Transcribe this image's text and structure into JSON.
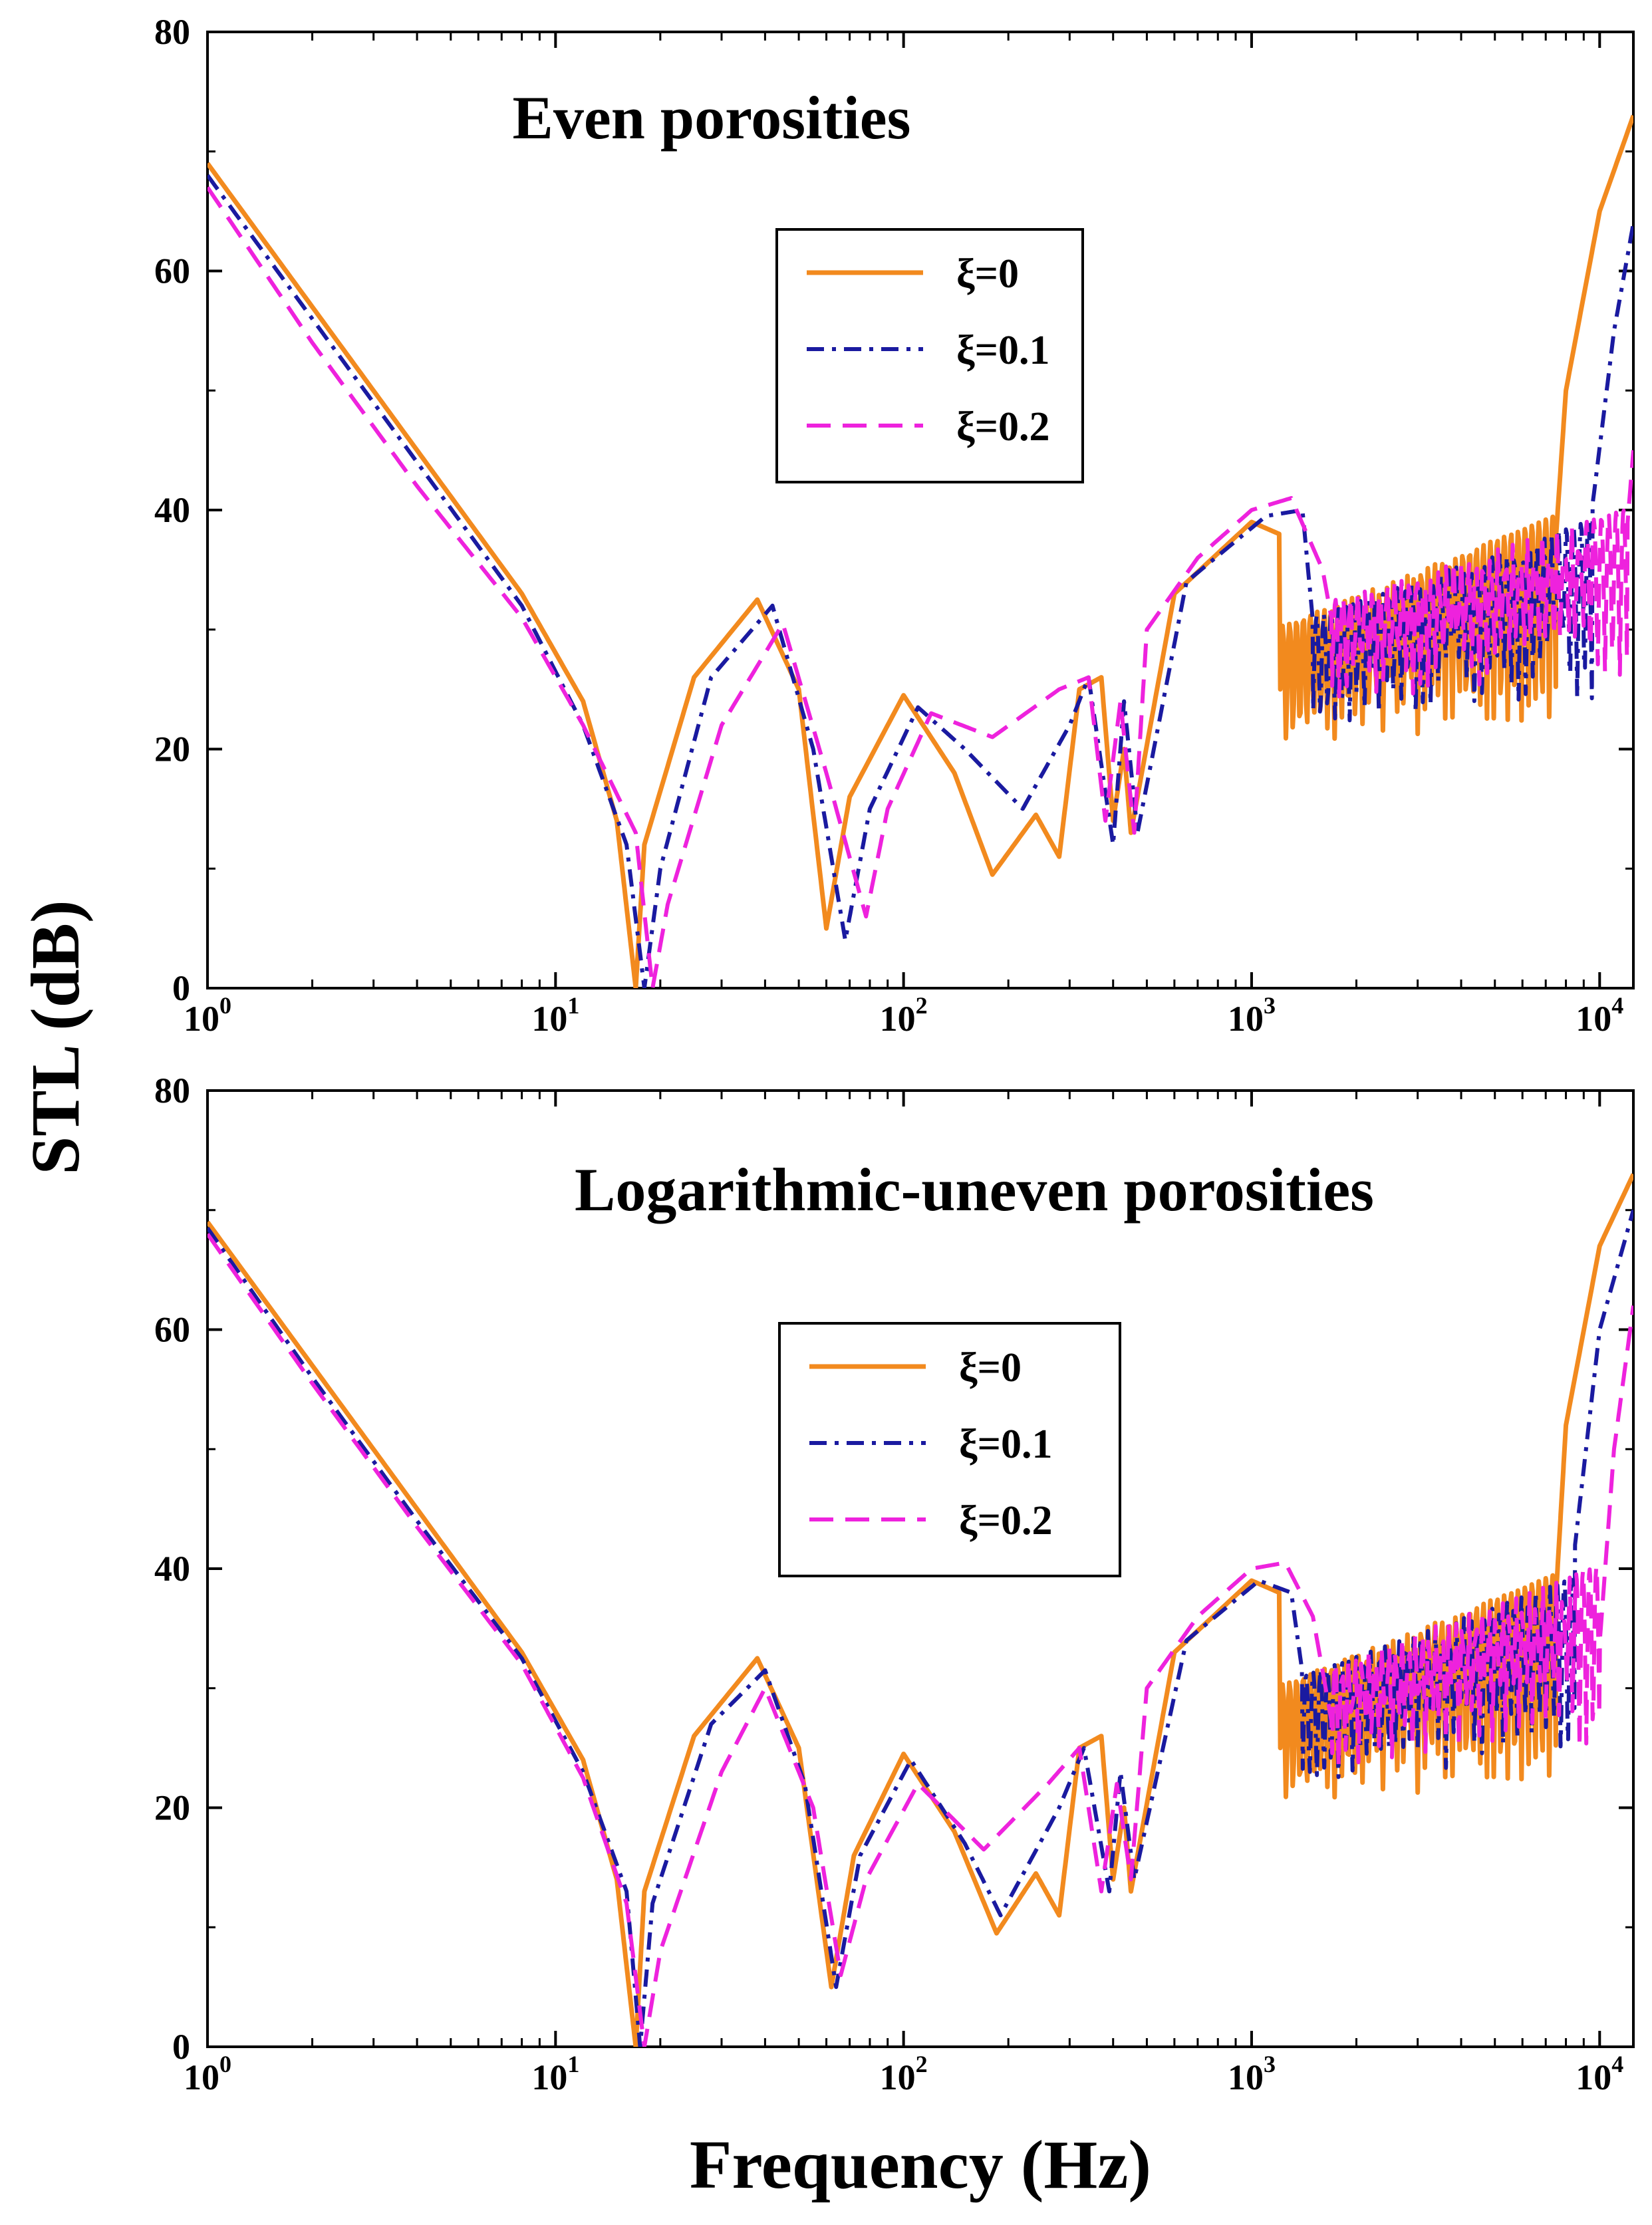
{
  "chart_data": [
    {
      "type": "line",
      "title": "Even porosities",
      "xlabel": "Frequency (Hz)",
      "ylabel": "STL (dB)",
      "xscale": "log",
      "xlim": [
        1,
        12500
      ],
      "ylim": [
        0,
        80
      ],
      "yticks": [
        "0",
        "20",
        "40",
        "60",
        "80"
      ],
      "xticks": [
        {
          "base": "10",
          "exp": "0"
        },
        {
          "base": "10",
          "exp": "1"
        },
        {
          "base": "10",
          "exp": "2"
        },
        {
          "base": "10",
          "exp": "3"
        },
        {
          "base": "10",
          "exp": "4"
        }
      ],
      "legend": {
        "position": "upper-center",
        "entries": [
          "ξ=0",
          "ξ=0.1",
          "ξ=0.2"
        ]
      },
      "series": [
        {
          "name": "ξ=0",
          "color": "#f28a1e",
          "dash": "solid",
          "x": [
            1,
            2,
            4,
            8,
            12,
            15,
            17,
            18,
            25,
            38,
            50,
            60,
            70,
            100,
            140,
            180,
            240,
            280,
            320,
            370,
            400,
            430,
            450,
            600,
            1000,
            1200,
            1500,
            2000,
            3000,
            4000,
            5000,
            6000,
            7000,
            7500,
            8000,
            10000,
            12500
          ],
          "y": [
            69,
            57,
            45,
            33,
            24,
            14,
            0,
            12,
            26,
            32.5,
            25,
            5,
            16,
            24.5,
            18,
            9.5,
            14.5,
            11,
            25,
            26,
            14,
            20,
            13,
            33,
            39,
            38,
            22,
            24,
            30,
            35,
            33,
            36,
            30,
            38,
            50,
            65,
            73
          ],
          "osc": [
            {
              "from": 1200,
              "to": 7500,
              "lo": 20,
              "hi": 37,
              "cycles": 40
            }
          ]
        },
        {
          "name": "ξ=0.1",
          "color": "#1a1aa0",
          "dash": "dashdot",
          "x": [
            1,
            2,
            4,
            8,
            12,
            16,
            18,
            20,
            28,
            42,
            55,
            68,
            80,
            110,
            150,
            220,
            300,
            340,
            400,
            430,
            470,
            650,
            1100,
            1400,
            1600,
            2000,
            3000,
            5000,
            8000,
            9500,
            11000,
            12500
          ],
          "y": [
            68,
            56,
            44,
            32,
            22,
            12,
            0,
            10,
            26,
            32,
            20,
            4,
            15,
            23.5,
            20,
            15,
            22,
            26,
            12,
            24,
            13,
            34,
            39.5,
            40,
            22,
            22,
            28,
            33,
            33,
            40,
            55,
            64
          ],
          "osc": [
            {
              "from": 1500,
              "to": 9500,
              "lo": 22,
              "hi": 37,
              "cycles": 38
            }
          ]
        },
        {
          "name": "ξ=0.2",
          "color": "#ee22dd",
          "dash": "dashed",
          "x": [
            1,
            2,
            4,
            8,
            12,
            17,
            19,
            21,
            30,
            45,
            60,
            78,
            90,
            120,
            180,
            280,
            340,
            380,
            420,
            460,
            500,
            700,
            1000,
            1300,
            1600,
            1900,
            3000,
            5000,
            9000,
            11000,
            12500
          ],
          "y": [
            67,
            54,
            42,
            31,
            22,
            13,
            0,
            7,
            22,
            30.5,
            18,
            6,
            15,
            23,
            21,
            25,
            26,
            14,
            24,
            13,
            30,
            36,
            40,
            41,
            35,
            23,
            30,
            33,
            33,
            25,
            45
          ],
          "osc": [
            {
              "from": 1700,
              "to": 12000,
              "lo": 24,
              "hi": 38,
              "cycles": 40
            }
          ]
        }
      ]
    },
    {
      "type": "line",
      "title": "Logarithmic-uneven porosities",
      "xlabel": "Frequency (Hz)",
      "ylabel": "STL (dB)",
      "xscale": "log",
      "xlim": [
        1,
        12500
      ],
      "ylim": [
        0,
        80
      ],
      "yticks": [
        "0",
        "20",
        "40",
        "60",
        "80"
      ],
      "xticks": [
        {
          "base": "10",
          "exp": "0"
        },
        {
          "base": "10",
          "exp": "1"
        },
        {
          "base": "10",
          "exp": "2"
        },
        {
          "base": "10",
          "exp": "3"
        },
        {
          "base": "10",
          "exp": "4"
        }
      ],
      "legend": {
        "position": "upper-center",
        "entries": [
          "ξ=0",
          "ξ=0.1",
          "ξ=0.2"
        ]
      },
      "series": [
        {
          "name": "ξ=0",
          "color": "#f28a1e",
          "dash": "solid",
          "x": [
            1,
            2,
            4,
            8,
            12,
            15,
            17,
            18,
            25,
            38,
            50,
            62,
            72,
            100,
            140,
            185,
            240,
            280,
            320,
            370,
            400,
            430,
            450,
            600,
            1000,
            1200,
            1500,
            2000,
            3000,
            4000,
            5000,
            6000,
            7000,
            7500,
            8000,
            10000,
            12500
          ],
          "y": [
            69,
            57,
            45,
            33,
            24,
            14,
            0,
            13,
            26,
            32.5,
            25,
            5,
            16,
            24.5,
            18,
            9.5,
            14.5,
            11,
            25,
            26,
            14,
            20,
            13,
            33,
            39,
            38,
            22,
            24,
            30,
            35,
            33,
            36,
            30,
            38,
            52,
            67,
            73
          ],
          "osc": [
            {
              "from": 1200,
              "to": 7500,
              "lo": 20,
              "hi": 37,
              "cycles": 40
            }
          ]
        },
        {
          "name": "ξ=0.1",
          "color": "#1a1aa0",
          "dash": "dashdot",
          "x": [
            1,
            2,
            4,
            8,
            12,
            16,
            17.5,
            19,
            28,
            40,
            52,
            64,
            75,
            105,
            150,
            190,
            280,
            330,
            390,
            420,
            460,
            650,
            1050,
            1300,
            1550,
            2000,
            3000,
            5000,
            7500,
            8500,
            10000,
            12500
          ],
          "y": [
            68.5,
            56,
            44,
            32.5,
            23,
            13,
            0,
            12,
            27,
            31.5,
            22,
            5,
            16,
            24,
            17,
            11,
            20,
            25,
            13,
            23,
            14,
            34,
            39,
            38,
            22,
            22,
            28,
            33,
            33,
            42,
            60,
            70
          ],
          "osc": [
            {
              "from": 1400,
              "to": 8500,
              "lo": 22,
              "hi": 37,
              "cycles": 38
            }
          ]
        },
        {
          "name": "ξ=0.2",
          "color": "#ee22dd",
          "dash": "dashed",
          "x": [
            1,
            2,
            4,
            8,
            12,
            16,
            18,
            20,
            30,
            40,
            55,
            66,
            78,
            110,
            170,
            260,
            320,
            370,
            410,
            450,
            500,
            700,
            1000,
            1250,
            1500,
            1800,
            3000,
            5000,
            8500,
            9500,
            11000,
            12500
          ],
          "y": [
            68,
            55.5,
            43.5,
            32,
            22.5,
            12,
            0,
            8,
            23,
            30,
            20,
            6,
            14,
            22,
            16.5,
            22,
            25,
            13,
            22,
            14,
            30,
            36,
            40,
            40.5,
            36,
            23,
            30,
            33,
            33,
            25,
            50,
            62
          ],
          "osc": [
            {
              "from": 1700,
              "to": 10000,
              "lo": 23,
              "hi": 38,
              "cycles": 40
            }
          ]
        }
      ]
    }
  ]
}
